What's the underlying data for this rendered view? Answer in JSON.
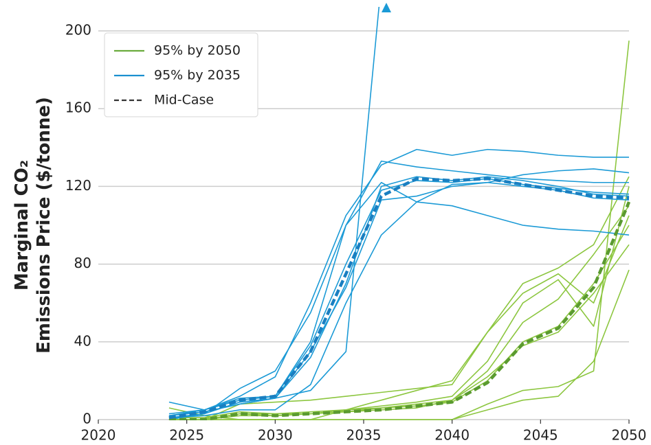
{
  "chart_data": {
    "type": "line",
    "ylabel": [
      "Marginal CO₂",
      "Emissions Price ($/tonne)"
    ],
    "x": [
      2024,
      2026,
      2028,
      2030,
      2032,
      2034,
      2036,
      2038,
      2040,
      2042,
      2044,
      2046,
      2048,
      2050
    ],
    "xlim": [
      2020,
      2050
    ],
    "xticks": [
      2020,
      2025,
      2030,
      2035,
      2040,
      2045,
      2050
    ],
    "ylim": [
      0,
      200
    ],
    "yticks": [
      0,
      40,
      80,
      120,
      160,
      200
    ],
    "grid": true,
    "legend_position": "upper left",
    "legend": [
      {
        "name": "95% by 2050",
        "color": "#6aab3c",
        "dash": false
      },
      {
        "name": "95% by 2035",
        "color": "#1b8fd0",
        "dash": false
      },
      {
        "name": "Mid-Case",
        "color": "#333333",
        "dash": true
      }
    ],
    "series": [
      {
        "color": "#8cc63f",
        "values": [
          6,
          2,
          0,
          0,
          0,
          5,
          10,
          15,
          20,
          45,
          70,
          78,
          90,
          125
        ]
      },
      {
        "color": "#8cc63f",
        "values": [
          0,
          0,
          3,
          2,
          3,
          4,
          6,
          8,
          10,
          25,
          50,
          62,
          85,
          110
        ]
      },
      {
        "color": "#8cc63f",
        "values": [
          0,
          0,
          8,
          9,
          10,
          12,
          14,
          16,
          18,
          45,
          65,
          75,
          60,
          105
        ]
      },
      {
        "color": "#8cc63f",
        "values": [
          0,
          0,
          0,
          0,
          0,
          0,
          0,
          0,
          0,
          8,
          15,
          17,
          25,
          195
        ]
      },
      {
        "color": "#8cc63f",
        "values": [
          0,
          0,
          2,
          2,
          3,
          5,
          6,
          7,
          9,
          20,
          40,
          48,
          70,
          100
        ]
      },
      {
        "color": "#8cc63f",
        "values": [
          0,
          0,
          0,
          0,
          0,
          0,
          0,
          0,
          0,
          5,
          10,
          12,
          30,
          77
        ]
      },
      {
        "color": "#8cc63f",
        "values": [
          1,
          1,
          4,
          3,
          4,
          5,
          7,
          9,
          12,
          30,
          60,
          72,
          48,
          120
        ]
      },
      {
        "color": "#8cc63f",
        "values": [
          0,
          0,
          3,
          3,
          3,
          4,
          5,
          6,
          10,
          22,
          38,
          45,
          65,
          90
        ]
      },
      {
        "color": "#1b9ad6",
        "values": [
          9,
          5,
          11,
          12,
          40,
          100,
          133,
          130,
          128,
          126,
          124,
          123,
          122,
          122
        ]
      },
      {
        "color": "#1b9ad6",
        "values": [
          2,
          5,
          12,
          22,
          60,
          105,
          131,
          139,
          136,
          139,
          138,
          136,
          135,
          135
        ]
      },
      {
        "color": "#1b9ad6",
        "values": [
          1,
          3,
          9,
          11,
          32,
          70,
          120,
          125,
          123,
          125,
          123,
          120,
          116,
          115
        ]
      },
      {
        "color": "#1b9ad6",
        "values": [
          3,
          5,
          10,
          12,
          38,
          80,
          118,
          123,
          122,
          124,
          121,
          119,
          117,
          116
        ]
      },
      {
        "color": "#1b9ad6",
        "values": [
          0,
          3,
          16,
          25,
          55,
          100,
          122,
          112,
          110,
          105,
          100,
          98,
          97,
          95
        ]
      },
      {
        "color": "#1b9ad6",
        "values": [
          2,
          4,
          8,
          11,
          15,
          35,
          225,
          null,
          null,
          null,
          null,
          null,
          null,
          null
        ]
      },
      {
        "color": "#1b9ad6",
        "values": [
          1,
          2,
          5,
          5,
          18,
          60,
          95,
          112,
          121,
          122,
          120,
          118,
          114,
          113
        ]
      },
      {
        "color": "#1b9ad6",
        "values": [
          2,
          4,
          8,
          11,
          35,
          68,
          113,
          115,
          120,
          122,
          126,
          128,
          129,
          127
        ]
      },
      {
        "color": "#5a9a30",
        "dash": true,
        "values": [
          0,
          0,
          3,
          2,
          3,
          4,
          5,
          7,
          9,
          19,
          39,
          47,
          68,
          112
        ]
      },
      {
        "color": "#1a7fc1",
        "dash": true,
        "values": [
          1,
          4,
          10,
          12,
          35,
          75,
          115,
          124,
          123,
          124,
          121,
          118,
          115,
          114
        ]
      }
    ]
  }
}
